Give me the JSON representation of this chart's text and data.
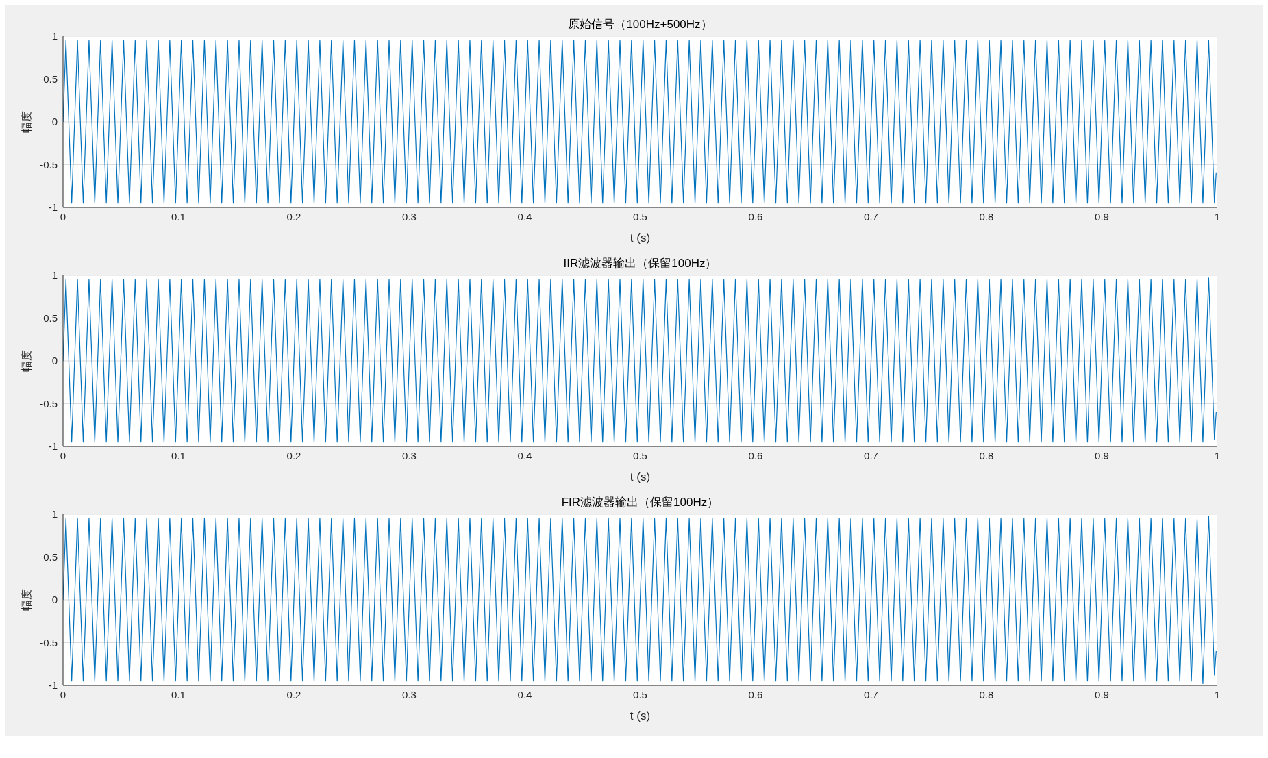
{
  "chart_data": [
    {
      "type": "line",
      "title": "原始信号（100Hz+500Hz）",
      "xlabel": "t (s)",
      "ylabel": "幅度",
      "color": "#0072bd",
      "grid": "y",
      "xlim": [
        0,
        1
      ],
      "xticks": [
        0,
        0.1,
        0.2,
        0.3,
        0.4,
        0.5,
        0.6,
        0.7,
        0.8,
        0.9,
        1
      ],
      "ylim": [
        -1,
        1
      ],
      "yticks": [
        -1,
        -0.5,
        0,
        0.5,
        1
      ],
      "x": [
        0,
        0.0025,
        0.0075,
        0.0125,
        0.0175,
        0.0225,
        0.0275,
        0.0325,
        0.0375,
        0.0425,
        0.0475,
        0.0525,
        0.0575,
        0.0625,
        0.0675,
        0.0725,
        0.0775,
        0.0825,
        0.0875,
        0.0925,
        0.0975,
        0.1025,
        0.1075,
        0.1125,
        0.1175,
        0.1225,
        0.1275,
        0.1325,
        0.1375,
        0.1425,
        0.1475,
        0.1525,
        0.1575,
        0.1625,
        0.1675,
        0.1725,
        0.1775,
        0.1825,
        0.1875,
        0.1925,
        0.1975,
        0.2025,
        0.2075,
        0.2125,
        0.2175,
        0.2225,
        0.2275,
        0.2325,
        0.2375,
        0.2425,
        0.2475,
        0.2525,
        0.2575,
        0.2625,
        0.2675,
        0.2725,
        0.2775,
        0.2825,
        0.2875,
        0.2925,
        0.2975,
        0.3025,
        0.3075,
        0.3125,
        0.3175,
        0.3225,
        0.3275,
        0.3325,
        0.3375,
        0.3425,
        0.3475,
        0.3525,
        0.3575,
        0.3625,
        0.3675,
        0.3725,
        0.3775,
        0.3825,
        0.3875,
        0.3925,
        0.3975,
        0.4025,
        0.4075,
        0.4125,
        0.4175,
        0.4225,
        0.4275,
        0.4325,
        0.4375,
        0.4425,
        0.4475,
        0.4525,
        0.4575,
        0.4625,
        0.4675,
        0.4725,
        0.4775,
        0.4825,
        0.4875,
        0.4925,
        0.4975,
        0.5025,
        0.5075,
        0.5125,
        0.5175,
        0.5225,
        0.5275,
        0.5325,
        0.5375,
        0.5425,
        0.5475,
        0.5525,
        0.5575,
        0.5625,
        0.5675,
        0.5725,
        0.5775,
        0.5825,
        0.5875,
        0.5925,
        0.5975,
        0.6025,
        0.6075,
        0.6125,
        0.6175,
        0.6225,
        0.6275,
        0.6325,
        0.6375,
        0.6425,
        0.6475,
        0.6525,
        0.6575,
        0.6625,
        0.6675,
        0.6725,
        0.6775,
        0.6825,
        0.6875,
        0.6925,
        0.6975,
        0.7025,
        0.7075,
        0.7125,
        0.7175,
        0.7225,
        0.7275,
        0.7325,
        0.7375,
        0.7425,
        0.7475,
        0.7525,
        0.7575,
        0.7625,
        0.7675,
        0.7725,
        0.7775,
        0.7825,
        0.7875,
        0.7925,
        0.7975,
        0.8025,
        0.8075,
        0.8125,
        0.8175,
        0.8225,
        0.8275,
        0.8325,
        0.8375,
        0.8425,
        0.8475,
        0.8525,
        0.8575,
        0.8625,
        0.8675,
        0.8725,
        0.8775,
        0.8825,
        0.8875,
        0.8925,
        0.8975,
        0.9025,
        0.9075,
        0.9125,
        0.9175,
        0.9225,
        0.9275,
        0.9325,
        0.9375,
        0.9425,
        0.9475,
        0.9525,
        0.9575,
        0.9625,
        0.9675,
        0.9725,
        0.9775,
        0.9825,
        0.9875,
        0.9925,
        0.9975,
        0.999
      ],
      "values": [
        0,
        0.95,
        -0.95,
        0.95,
        -0.95,
        0.95,
        -0.95,
        0.95,
        -0.95,
        0.95,
        -0.95,
        0.95,
        -0.95,
        0.95,
        -0.95,
        0.95,
        -0.95,
        0.95,
        -0.95,
        0.95,
        -0.95,
        0.95,
        -0.95,
        0.95,
        -0.95,
        0.95,
        -0.95,
        0.95,
        -0.95,
        0.95,
        -0.95,
        0.95,
        -0.95,
        0.95,
        -0.95,
        0.95,
        -0.95,
        0.95,
        -0.95,
        0.95,
        -0.95,
        0.95,
        -0.95,
        0.95,
        -0.95,
        0.95,
        -0.95,
        0.95,
        -0.95,
        0.95,
        -0.95,
        0.95,
        -0.95,
        0.95,
        -0.95,
        0.95,
        -0.95,
        0.95,
        -0.95,
        0.95,
        -0.95,
        0.95,
        -0.95,
        0.95,
        -0.95,
        0.95,
        -0.95,
        0.95,
        -0.95,
        0.95,
        -0.95,
        0.95,
        -0.95,
        0.95,
        -0.95,
        0.95,
        -0.95,
        0.95,
        -0.95,
        0.95,
        -0.95,
        0.95,
        -0.95,
        0.95,
        -0.95,
        0.95,
        -0.95,
        0.95,
        -0.95,
        0.95,
        -0.95,
        0.95,
        -0.95,
        0.95,
        -0.95,
        0.95,
        -0.95,
        0.95,
        -0.95,
        0.95,
        -0.95,
        0.95,
        -0.95,
        0.95,
        -0.95,
        0.95,
        -0.95,
        0.95,
        -0.95,
        0.95,
        -0.95,
        0.95,
        -0.95,
        0.95,
        -0.95,
        0.95,
        -0.95,
        0.95,
        -0.95,
        0.95,
        -0.95,
        0.95,
        -0.95,
        0.95,
        -0.95,
        0.95,
        -0.95,
        0.95,
        -0.95,
        0.95,
        -0.95,
        0.95,
        -0.95,
        0.95,
        -0.95,
        0.95,
        -0.95,
        0.95,
        -0.95,
        0.95,
        -0.95,
        0.95,
        -0.95,
        0.95,
        -0.95,
        0.95,
        -0.95,
        0.95,
        -0.95,
        0.95,
        -0.95,
        0.95,
        -0.95,
        0.95,
        -0.95,
        0.95,
        -0.95,
        0.95,
        -0.95,
        0.95,
        -0.95,
        0.95,
        -0.95,
        0.95,
        -0.95,
        0.95,
        -0.95,
        0.95,
        -0.95,
        0.95,
        -0.95,
        0.95,
        -0.95,
        0.95,
        -0.95,
        0.95,
        -0.95,
        0.95,
        -0.95,
        0.95,
        -0.95,
        0.95,
        -0.95,
        0.95,
        -0.95,
        0.95,
        -0.95,
        0.95,
        -0.95,
        0.95,
        -0.95,
        0.95,
        -0.95,
        0.95,
        -0.95,
        0.95,
        -0.95,
        0.95,
        -0.95,
        0.95,
        -0.95,
        -0.59
      ]
    },
    {
      "type": "line",
      "title": "IIR滤波器输出（保留100Hz）",
      "xlabel": "t (s)",
      "ylabel": "幅度",
      "color": "#0072bd",
      "grid": "y",
      "xlim": [
        0,
        1
      ],
      "xticks": [
        0,
        0.1,
        0.2,
        0.3,
        0.4,
        0.5,
        0.6,
        0.7,
        0.8,
        0.9,
        1
      ],
      "ylim": [
        -1,
        1
      ],
      "yticks": [
        -1,
        -0.5,
        0,
        0.5,
        1
      ],
      "x": [
        0,
        0.0025,
        0.0075,
        0.0125,
        0.0175,
        0.0225,
        0.0275,
        0.0325,
        0.0375,
        0.0425,
        0.0475,
        0.0525,
        0.0575,
        0.0625,
        0.0675,
        0.0725,
        0.0775,
        0.0825,
        0.0875,
        0.0925,
        0.0975,
        0.1025,
        0.1075,
        0.1125,
        0.1175,
        0.1225,
        0.1275,
        0.1325,
        0.1375,
        0.1425,
        0.1475,
        0.1525,
        0.1575,
        0.1625,
        0.1675,
        0.1725,
        0.1775,
        0.1825,
        0.1875,
        0.1925,
        0.1975,
        0.2025,
        0.2075,
        0.2125,
        0.2175,
        0.2225,
        0.2275,
        0.2325,
        0.2375,
        0.2425,
        0.2475,
        0.2525,
        0.2575,
        0.2625,
        0.2675,
        0.2725,
        0.2775,
        0.2825,
        0.2875,
        0.2925,
        0.2975,
        0.3025,
        0.3075,
        0.3125,
        0.3175,
        0.3225,
        0.3275,
        0.3325,
        0.3375,
        0.3425,
        0.3475,
        0.3525,
        0.3575,
        0.3625,
        0.3675,
        0.3725,
        0.3775,
        0.3825,
        0.3875,
        0.3925,
        0.3975,
        0.4025,
        0.4075,
        0.4125,
        0.4175,
        0.4225,
        0.4275,
        0.4325,
        0.4375,
        0.4425,
        0.4475,
        0.4525,
        0.4575,
        0.4625,
        0.4675,
        0.4725,
        0.4775,
        0.4825,
        0.4875,
        0.4925,
        0.4975,
        0.5025,
        0.5075,
        0.5125,
        0.5175,
        0.5225,
        0.5275,
        0.5325,
        0.5375,
        0.5425,
        0.5475,
        0.5525,
        0.5575,
        0.5625,
        0.5675,
        0.5725,
        0.5775,
        0.5825,
        0.5875,
        0.5925,
        0.5975,
        0.6025,
        0.6075,
        0.6125,
        0.6175,
        0.6225,
        0.6275,
        0.6325,
        0.6375,
        0.6425,
        0.6475,
        0.6525,
        0.6575,
        0.6625,
        0.6675,
        0.6725,
        0.6775,
        0.6825,
        0.6875,
        0.6925,
        0.6975,
        0.7025,
        0.7075,
        0.7125,
        0.7175,
        0.7225,
        0.7275,
        0.7325,
        0.7375,
        0.7425,
        0.7475,
        0.7525,
        0.7575,
        0.7625,
        0.7675,
        0.7725,
        0.7775,
        0.7825,
        0.7875,
        0.7925,
        0.7975,
        0.8025,
        0.8075,
        0.8125,
        0.8175,
        0.8225,
        0.8275,
        0.8325,
        0.8375,
        0.8425,
        0.8475,
        0.8525,
        0.8575,
        0.8625,
        0.8675,
        0.8725,
        0.8775,
        0.8825,
        0.8875,
        0.8925,
        0.8975,
        0.9025,
        0.9075,
        0.9125,
        0.9175,
        0.9225,
        0.9275,
        0.9325,
        0.9375,
        0.9425,
        0.9475,
        0.9525,
        0.9575,
        0.9625,
        0.9675,
        0.9725,
        0.9775,
        0.9825,
        0.9875,
        0.9925,
        0.9975,
        0.999
      ],
      "values": [
        0,
        0.95,
        -0.95,
        0.95,
        -0.95,
        0.95,
        -0.95,
        0.95,
        -0.95,
        0.95,
        -0.95,
        0.95,
        -0.95,
        0.95,
        -0.95,
        0.95,
        -0.95,
        0.95,
        -0.95,
        0.95,
        -0.95,
        0.95,
        -0.95,
        0.95,
        -0.95,
        0.95,
        -0.95,
        0.95,
        -0.95,
        0.95,
        -0.95,
        0.95,
        -0.95,
        0.95,
        -0.95,
        0.95,
        -0.95,
        0.95,
        -0.95,
        0.95,
        -0.95,
        0.95,
        -0.95,
        0.95,
        -0.95,
        0.95,
        -0.95,
        0.95,
        -0.95,
        0.95,
        -0.95,
        0.95,
        -0.95,
        0.95,
        -0.95,
        0.95,
        -0.95,
        0.95,
        -0.95,
        0.95,
        -0.95,
        0.95,
        -0.95,
        0.95,
        -0.95,
        0.95,
        -0.95,
        0.95,
        -0.95,
        0.95,
        -0.95,
        0.95,
        -0.95,
        0.95,
        -0.95,
        0.95,
        -0.95,
        0.95,
        -0.95,
        0.95,
        -0.95,
        0.95,
        -0.95,
        0.95,
        -0.95,
        0.95,
        -0.95,
        0.95,
        -0.95,
        0.95,
        -0.95,
        0.95,
        -0.95,
        0.95,
        -0.95,
        0.95,
        -0.95,
        0.95,
        -0.95,
        0.95,
        -0.95,
        0.95,
        -0.95,
        0.95,
        -0.95,
        0.95,
        -0.95,
        0.95,
        -0.95,
        0.95,
        -0.95,
        0.95,
        -0.95,
        0.95,
        -0.95,
        0.95,
        -0.95,
        0.95,
        -0.95,
        0.95,
        -0.95,
        0.95,
        -0.95,
        0.95,
        -0.95,
        0.95,
        -0.95,
        0.95,
        -0.95,
        0.95,
        -0.95,
        0.95,
        -0.95,
        0.95,
        -0.95,
        0.95,
        -0.95,
        0.95,
        -0.95,
        0.95,
        -0.95,
        0.95,
        -0.95,
        0.95,
        -0.95,
        0.95,
        -0.95,
        0.95,
        -0.95,
        0.95,
        -0.95,
        0.95,
        -0.95,
        0.95,
        -0.95,
        0.95,
        -0.95,
        0.95,
        -0.95,
        0.95,
        -0.95,
        0.95,
        -0.95,
        0.95,
        -0.95,
        0.95,
        -0.95,
        0.95,
        -0.95,
        0.95,
        -0.95,
        0.95,
        -0.95,
        0.95,
        -0.95,
        0.95,
        -0.95,
        0.95,
        -0.95,
        0.95,
        -0.95,
        0.95,
        -0.95,
        0.95,
        -0.95,
        0.95,
        -0.95,
        0.95,
        -0.95,
        0.95,
        -0.95,
        0.95,
        -0.95,
        0.95,
        -0.95,
        0.95,
        -0.95,
        0.95,
        -0.95,
        0.97,
        -0.92,
        -0.6
      ]
    },
    {
      "type": "line",
      "title": "FIR滤波器输出（保留100Hz）",
      "xlabel": "t (s)",
      "ylabel": "幅度",
      "color": "#0072bd",
      "grid": "y",
      "xlim": [
        0,
        1
      ],
      "xticks": [
        0,
        0.1,
        0.2,
        0.3,
        0.4,
        0.5,
        0.6,
        0.7,
        0.8,
        0.9,
        1
      ],
      "ylim": [
        -1,
        1
      ],
      "yticks": [
        -1,
        -0.5,
        0,
        0.5,
        1
      ],
      "x": [
        0,
        0.0025,
        0.0075,
        0.0125,
        0.0175,
        0.0225,
        0.0275,
        0.0325,
        0.0375,
        0.0425,
        0.0475,
        0.0525,
        0.0575,
        0.0625,
        0.0675,
        0.0725,
        0.0775,
        0.0825,
        0.0875,
        0.0925,
        0.0975,
        0.1025,
        0.1075,
        0.1125,
        0.1175,
        0.1225,
        0.1275,
        0.1325,
        0.1375,
        0.1425,
        0.1475,
        0.1525,
        0.1575,
        0.1625,
        0.1675,
        0.1725,
        0.1775,
        0.1825,
        0.1875,
        0.1925,
        0.1975,
        0.2025,
        0.2075,
        0.2125,
        0.2175,
        0.2225,
        0.2275,
        0.2325,
        0.2375,
        0.2425,
        0.2475,
        0.2525,
        0.2575,
        0.2625,
        0.2675,
        0.2725,
        0.2775,
        0.2825,
        0.2875,
        0.2925,
        0.2975,
        0.3025,
        0.3075,
        0.3125,
        0.3175,
        0.3225,
        0.3275,
        0.3325,
        0.3375,
        0.3425,
        0.3475,
        0.3525,
        0.3575,
        0.3625,
        0.3675,
        0.3725,
        0.3775,
        0.3825,
        0.3875,
        0.3925,
        0.3975,
        0.4025,
        0.4075,
        0.4125,
        0.4175,
        0.4225,
        0.4275,
        0.4325,
        0.4375,
        0.4425,
        0.4475,
        0.4525,
        0.4575,
        0.4625,
        0.4675,
        0.4725,
        0.4775,
        0.4825,
        0.4875,
        0.4925,
        0.4975,
        0.5025,
        0.5075,
        0.5125,
        0.5175,
        0.5225,
        0.5275,
        0.5325,
        0.5375,
        0.5425,
        0.5475,
        0.5525,
        0.5575,
        0.5625,
        0.5675,
        0.5725,
        0.5775,
        0.5825,
        0.5875,
        0.5925,
        0.5975,
        0.6025,
        0.6075,
        0.6125,
        0.6175,
        0.6225,
        0.6275,
        0.6325,
        0.6375,
        0.6425,
        0.6475,
        0.6525,
        0.6575,
        0.6625,
        0.6675,
        0.6725,
        0.6775,
        0.6825,
        0.6875,
        0.6925,
        0.6975,
        0.7025,
        0.7075,
        0.7125,
        0.7175,
        0.7225,
        0.7275,
        0.7325,
        0.7375,
        0.7425,
        0.7475,
        0.7525,
        0.7575,
        0.7625,
        0.7675,
        0.7725,
        0.7775,
        0.7825,
        0.7875,
        0.7925,
        0.7975,
        0.8025,
        0.8075,
        0.8125,
        0.8175,
        0.8225,
        0.8275,
        0.8325,
        0.8375,
        0.8425,
        0.8475,
        0.8525,
        0.8575,
        0.8625,
        0.8675,
        0.8725,
        0.8775,
        0.8825,
        0.8875,
        0.8925,
        0.8975,
        0.9025,
        0.9075,
        0.9125,
        0.9175,
        0.9225,
        0.9275,
        0.9325,
        0.9375,
        0.9425,
        0.9475,
        0.9525,
        0.9575,
        0.9625,
        0.9675,
        0.9725,
        0.9775,
        0.9825,
        0.9875,
        0.9925,
        0.9975,
        0.999
      ],
      "values": [
        0,
        0.95,
        -0.95,
        0.95,
        -0.95,
        0.95,
        -0.95,
        0.95,
        -0.95,
        0.95,
        -0.95,
        0.95,
        -0.95,
        0.95,
        -0.95,
        0.95,
        -0.95,
        0.95,
        -0.95,
        0.95,
        -0.95,
        0.95,
        -0.95,
        0.95,
        -0.95,
        0.95,
        -0.95,
        0.95,
        -0.95,
        0.95,
        -0.95,
        0.95,
        -0.95,
        0.95,
        -0.95,
        0.95,
        -0.95,
        0.95,
        -0.95,
        0.95,
        -0.95,
        0.95,
        -0.95,
        0.95,
        -0.95,
        0.95,
        -0.95,
        0.95,
        -0.95,
        0.95,
        -0.95,
        0.95,
        -0.95,
        0.95,
        -0.95,
        0.95,
        -0.95,
        0.95,
        -0.95,
        0.95,
        -0.95,
        0.95,
        -0.95,
        0.95,
        -0.95,
        0.95,
        -0.95,
        0.95,
        -0.95,
        0.95,
        -0.95,
        0.95,
        -0.95,
        0.95,
        -0.95,
        0.95,
        -0.95,
        0.95,
        -0.95,
        0.95,
        -0.95,
        0.95,
        -0.95,
        0.95,
        -0.95,
        0.95,
        -0.95,
        0.95,
        -0.95,
        0.95,
        -0.95,
        0.95,
        -0.95,
        0.95,
        -0.95,
        0.95,
        -0.95,
        0.95,
        -0.95,
        0.95,
        -0.95,
        0.95,
        -0.95,
        0.95,
        -0.95,
        0.95,
        -0.95,
        0.95,
        -0.95,
        0.95,
        -0.95,
        0.95,
        -0.95,
        0.95,
        -0.95,
        0.95,
        -0.95,
        0.95,
        -0.95,
        0.95,
        -0.95,
        0.95,
        -0.95,
        0.95,
        -0.95,
        0.95,
        -0.95,
        0.95,
        -0.95,
        0.95,
        -0.95,
        0.95,
        -0.95,
        0.95,
        -0.95,
        0.95,
        -0.95,
        0.95,
        -0.95,
        0.95,
        -0.95,
        0.95,
        -0.95,
        0.95,
        -0.95,
        0.95,
        -0.95,
        0.95,
        -0.95,
        0.95,
        -0.95,
        0.95,
        -0.95,
        0.95,
        -0.95,
        0.95,
        -0.95,
        0.95,
        -0.95,
        0.95,
        -0.95,
        0.95,
        -0.95,
        0.95,
        -0.95,
        0.95,
        -0.95,
        0.95,
        -0.95,
        0.95,
        -0.95,
        0.95,
        -0.95,
        0.95,
        -0.95,
        0.95,
        -0.95,
        0.95,
        -0.95,
        0.95,
        -0.95,
        0.95,
        -0.95,
        0.95,
        -0.95,
        0.95,
        -0.95,
        0.95,
        -0.95,
        0.95,
        -0.95,
        0.95,
        -0.95,
        0.95,
        -0.95,
        0.95,
        -0.95,
        0.94,
        -0.98,
        0.98,
        -0.88,
        -0.6
      ]
    }
  ]
}
